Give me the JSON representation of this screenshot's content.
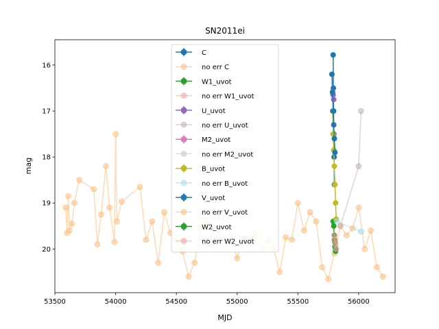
{
  "chart_data": {
    "type": "line",
    "title": "SN2011ei",
    "xlabel": "MJD",
    "ylabel": "mag",
    "xlim": [
      53500,
      56300
    ],
    "ylim": [
      20.95,
      15.45
    ],
    "y_inverted": true,
    "xticks": [
      53500,
      54000,
      54500,
      55000,
      55500,
      56000
    ],
    "yticks": [
      16,
      17,
      18,
      19,
      20
    ],
    "grid": false,
    "legend_position": "top-center",
    "series": [
      {
        "name": "C",
        "color": "#1f77b4",
        "errorbar": true,
        "x": [
          55790,
          55792,
          55794,
          55796,
          55798,
          55800
        ],
        "y": [
          15.78,
          16.5,
          17.0,
          17.5,
          18.0,
          18.6
        ]
      },
      {
        "name": "no err C",
        "color": "#ffbb78",
        "errorbar": false,
        "x": [
          53590,
          53600,
          53610,
          53620,
          53640,
          53660,
          53700,
          53820,
          53850,
          53880,
          53920,
          53950,
          53990,
          54000,
          54010,
          54050,
          54200,
          54250,
          54300,
          54350,
          54400,
          54450,
          54500,
          54550,
          54600,
          54650,
          54700,
          54750,
          54800,
          54850,
          54900,
          54950,
          55000,
          55050,
          55100,
          55150,
          55200,
          55250,
          55300,
          55350,
          55400,
          55450,
          55500,
          55550,
          55600,
          55650,
          55700,
          55750,
          55800,
          55850,
          55900,
          55950,
          56000,
          56050,
          56100,
          56150,
          56200
        ],
        "y": [
          19.1,
          19.65,
          18.85,
          19.6,
          19.45,
          19.0,
          18.5,
          18.7,
          19.9,
          19.25,
          18.2,
          19.1,
          19.85,
          17.5,
          19.4,
          18.97,
          18.65,
          19.8,
          19.4,
          20.3,
          19.2,
          19.65,
          19.8,
          20.05,
          20.6,
          20.3,
          19.55,
          19.45,
          19.95,
          19.6,
          19.15,
          19.7,
          20.2,
          19.8,
          19.9,
          19.65,
          20.0,
          19.8,
          20.0,
          20.5,
          19.75,
          19.8,
          19.0,
          19.6,
          19.2,
          19.4,
          20.4,
          20.65,
          20.1,
          19.5,
          19.7,
          19.55,
          19.1,
          20.0,
          19.6,
          20.4,
          20.6
        ]
      },
      {
        "name": "W1_uvot",
        "color": "#2ca02c",
        "errorbar": true,
        "x": [
          55790,
          55795,
          55800,
          55805,
          55810
        ],
        "y": [
          19.4,
          19.5,
          19.8,
          19.95,
          20.05
        ]
      },
      {
        "name": "no err W1_uvot",
        "color": "#f0a0a0",
        "errorbar": false,
        "x": [],
        "y": []
      },
      {
        "name": "U_uvot",
        "color": "#9467bd",
        "errorbar": true,
        "x": [
          55785,
          55790,
          55795
        ],
        "y": [
          16.58,
          16.65,
          16.75
        ]
      },
      {
        "name": "no err U_uvot",
        "color": "#c5b0a8",
        "errorbar": false,
        "x": [
          55850,
          56000,
          56020
        ],
        "y": [
          19.5,
          18.2,
          17.0
        ]
      },
      {
        "name": "M2_uvot",
        "color": "#e377c2",
        "errorbar": true,
        "x": [],
        "y": []
      },
      {
        "name": "no err M2_uvot",
        "color": "#c7c7c7",
        "errorbar": false,
        "x": [],
        "y": []
      },
      {
        "name": "B_uvot",
        "color": "#bcbd22",
        "errorbar": true,
        "x": [
          55785,
          55790,
          55795,
          55800,
          55805,
          55810,
          55815
        ],
        "y": [
          17.0,
          17.5,
          17.85,
          18.2,
          18.6,
          19.0,
          19.35
        ]
      },
      {
        "name": "no err B_uvot",
        "color": "#9edae5",
        "errorbar": false,
        "x": [
          55820,
          56020
        ],
        "y": [
          19.4,
          19.62
        ]
      },
      {
        "name": "V_uvot",
        "color": "#1f77b4",
        "errorbar": true,
        "x": [
          55780,
          55785,
          55790,
          55795,
          55800,
          55805
        ],
        "y": [
          16.2,
          16.6,
          17.0,
          17.3,
          17.6,
          17.9
        ]
      },
      {
        "name": "no err V_uvot",
        "color": "#ffbb78",
        "errorbar": false,
        "x": [],
        "y": []
      },
      {
        "name": "W2_uvot",
        "color": "#2ca02c",
        "errorbar": true,
        "x": [
          55800,
          55805,
          55810
        ],
        "y": [
          19.7,
          19.85,
          20.0
        ]
      },
      {
        "name": "no err W2_uvot",
        "color": "#f0a0a0",
        "errorbar": false,
        "x": [
          55800,
          55805,
          55810,
          55815
        ],
        "y": [
          19.7,
          19.8,
          19.9,
          20.0
        ]
      }
    ]
  }
}
